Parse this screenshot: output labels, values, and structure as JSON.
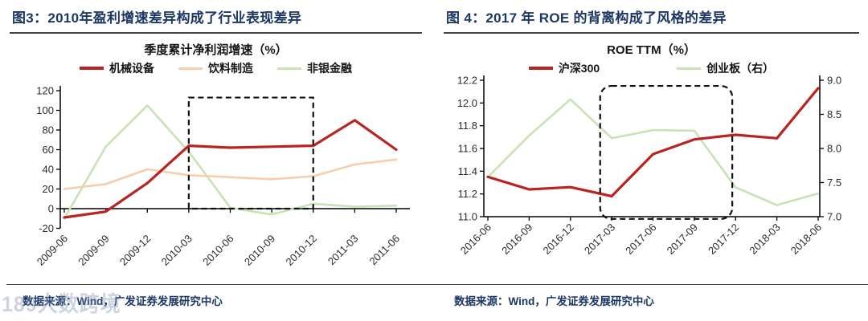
{
  "page": {
    "watermark": {
      "text": "189大数跨境",
      "color": "#8195b8"
    }
  },
  "figure3": {
    "title": "图3：2010年盈利增速差异构成了行业表现差异",
    "subtitle": "季度累计净利润增速（%）",
    "source": "数据来源：Wind，广发证券发展研究中心",
    "accent_color": "#1c3763",
    "chart_data": {
      "type": "line",
      "categories": [
        "2009-06",
        "2009-09",
        "2009-12",
        "2010-03",
        "2010-06",
        "2010-09",
        "2010-12",
        "2011-03",
        "2011-06"
      ],
      "series": [
        {
          "name": "机械设备",
          "axis": "left",
          "color": "#b92421",
          "line_width": 3.2,
          "values": [
            -9,
            -3,
            26,
            64,
            62,
            63,
            64,
            90,
            60
          ]
        },
        {
          "name": "饮料制造",
          "axis": "left",
          "color": "#f7cdab",
          "line_width": 2.6,
          "values": [
            20,
            25,
            40,
            34,
            32,
            30,
            33,
            45,
            50
          ]
        },
        {
          "name": "非银金融",
          "axis": "left",
          "color": "#c8e2b5",
          "line_width": 2.6,
          "values": [
            -10,
            63,
            105,
            58,
            1,
            -6,
            5,
            2,
            3
          ]
        }
      ],
      "ylim": [
        -20,
        120
      ],
      "yticks": [
        120,
        100,
        80,
        60,
        40,
        20,
        0,
        -20
      ],
      "ytick_decimals": 0,
      "x_axis_value": 0,
      "grid": false,
      "legend_position": "top",
      "highlight_box": {
        "x_from_index": 3,
        "x_to_index": 6,
        "y_from_value": 0,
        "y_to_value": 113,
        "style": "dashed",
        "corner_radius": 0
      }
    }
  },
  "figure4": {
    "title": "图 4：2017 年 ROE 的背离构成了风格的差异",
    "subtitle": "ROE TTM（%）",
    "source": "数据来源：Wind，广发证券发展研究中心",
    "accent_color": "#1c3763",
    "chart_data": {
      "type": "line",
      "categories": [
        "2016-06",
        "2016-09",
        "2016-12",
        "2017-03",
        "2017-06",
        "2017-09",
        "2017-12",
        "2018-03",
        "2018-06"
      ],
      "series": [
        {
          "name": "沪深300",
          "axis": "left",
          "color": "#b92421",
          "line_width": 3.2,
          "values": [
            11.35,
            11.24,
            11.26,
            11.18,
            11.55,
            11.68,
            11.72,
            11.69,
            12.13
          ]
        },
        {
          "name": "创业板（右）",
          "axis": "right",
          "color": "#c8e2b5",
          "line_width": 2.6,
          "values": [
            7.58,
            8.19,
            8.72,
            8.15,
            8.27,
            8.26,
            7.43,
            7.17,
            7.34
          ]
        }
      ],
      "ylim": [
        11.0,
        12.2
      ],
      "yticks": [
        12.2,
        12.0,
        11.8,
        11.6,
        11.4,
        11.2,
        11.0
      ],
      "ytick_decimals": 1,
      "y2lim": [
        7.0,
        9.0
      ],
      "y2ticks": [
        9.0,
        8.5,
        8.0,
        7.5,
        7.0
      ],
      "y2tick_decimals": 1,
      "x_axis_value": 11.0,
      "grid": false,
      "legend_position": "top",
      "highlight_box": {
        "x_from_index": 2.72,
        "x_to_index": 5.92,
        "y_from_value": 10.98,
        "y_to_value": 12.15,
        "style": "dashed",
        "corner_radius": 14
      }
    }
  }
}
